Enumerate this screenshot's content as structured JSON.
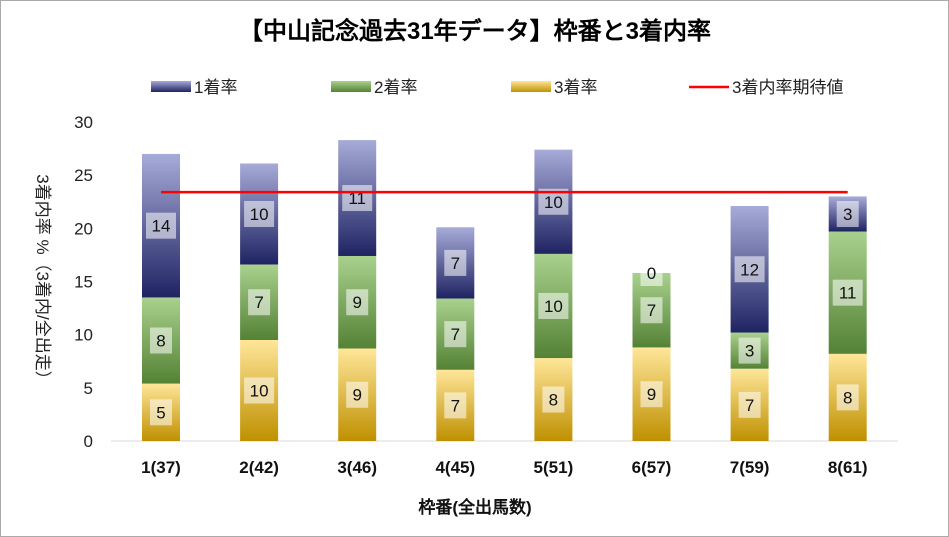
{
  "chart_data": {
    "type": "bar",
    "stacked": true,
    "title": "【中山記念過去31年データ】枠番と3着内率",
    "xlabel": "枠番(全出馬数)",
    "ylabel": "3着内率 %（3着内/全出走）",
    "ylim": [
      0,
      30
    ],
    "yticks": [
      0,
      5,
      10,
      15,
      20,
      25,
      30
    ],
    "categories": [
      "1(37)",
      "2(42)",
      "3(46)",
      "4(45)",
      "5(51)",
      "6(57)",
      "7(59)",
      "8(61)"
    ],
    "series": [
      {
        "name": "3着率",
        "values": [
          5.4,
          9.5,
          8.7,
          6.7,
          7.8,
          8.8,
          6.8,
          8.2
        ],
        "labels": [
          "5",
          "10",
          "9",
          "7",
          "8",
          "9",
          "7",
          "8"
        ],
        "color_top": "#ffe699",
        "color_bottom": "#bf9000"
      },
      {
        "name": "2着率",
        "values": [
          8.1,
          7.1,
          8.7,
          6.7,
          9.8,
          7.0,
          3.4,
          11.5
        ],
        "labels": [
          "8",
          "7",
          "9",
          "7",
          "10",
          "7",
          "3",
          "11"
        ],
        "color_top": "#a9d18e",
        "color_bottom": "#548235"
      },
      {
        "name": "1着率",
        "values": [
          13.5,
          9.5,
          10.9,
          6.7,
          9.8,
          0,
          11.9,
          3.3
        ],
        "labels": [
          "14",
          "10",
          "11",
          "7",
          "10",
          "0",
          "12",
          "3"
        ],
        "color_top": "#a7abd8",
        "color_bottom": "#1f2362"
      }
    ],
    "reference_line": {
      "name": "3着内率期待値",
      "value": 23.4,
      "color": "#ff0000"
    },
    "legend": [
      "1着率",
      "2着率",
      "3着率",
      "3着内率期待値"
    ],
    "legend_position": "top",
    "grid": false
  }
}
